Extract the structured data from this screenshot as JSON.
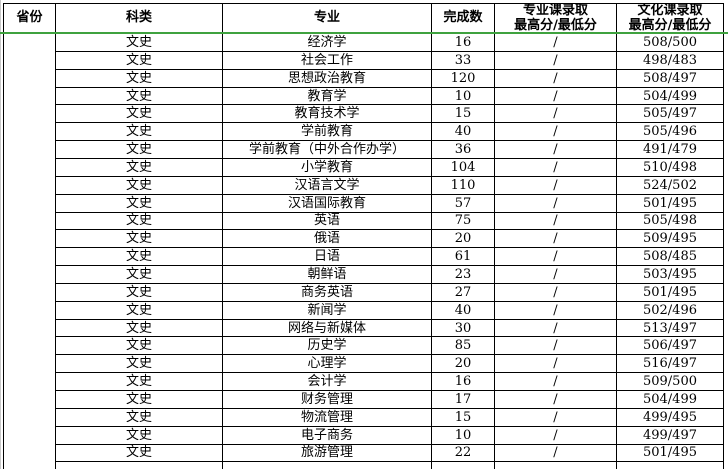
{
  "table": {
    "province": "",
    "headers": [
      "省份",
      "科类",
      "专业",
      "完成数",
      "专业课录取\n最高分/最低分",
      "文化课录取\n最高分/最低分"
    ],
    "rows": [
      [
        "文史",
        "经济学",
        "16",
        "/",
        "508/500"
      ],
      [
        "文史",
        "社会工作",
        "33",
        "/",
        "498/483"
      ],
      [
        "文史",
        "思想政治教育",
        "120",
        "/",
        "508/497"
      ],
      [
        "文史",
        "教育学",
        "10",
        "/",
        "504/499"
      ],
      [
        "文史",
        "教育技术学",
        "15",
        "/",
        "505/497"
      ],
      [
        "文史",
        "学前教育",
        "40",
        "/",
        "505/496"
      ],
      [
        "文史",
        "学前教育（中外合作办学）",
        "36",
        "/",
        "491/479"
      ],
      [
        "文史",
        "小学教育",
        "104",
        "/",
        "510/498"
      ],
      [
        "文史",
        "汉语言文学",
        "110",
        "/",
        "524/502"
      ],
      [
        "文史",
        "汉语国际教育",
        "57",
        "/",
        "501/495"
      ],
      [
        "文史",
        "英语",
        "75",
        "/",
        "505/498"
      ],
      [
        "文史",
        "俄语",
        "20",
        "/",
        "509/495"
      ],
      [
        "文史",
        "日语",
        "61",
        "/",
        "508/485"
      ],
      [
        "文史",
        "朝鲜语",
        "23",
        "/",
        "503/495"
      ],
      [
        "文史",
        "商务英语",
        "27",
        "/",
        "501/495"
      ],
      [
        "文史",
        "新闻学",
        "40",
        "/",
        "502/496"
      ],
      [
        "文史",
        "网络与新媒体",
        "30",
        "/",
        "513/497"
      ],
      [
        "文史",
        "历史学",
        "85",
        "/",
        "506/497"
      ],
      [
        "文史",
        "心理学",
        "20",
        "/",
        "516/497"
      ],
      [
        "文史",
        "会计学",
        "16",
        "/",
        "509/500"
      ],
      [
        "文史",
        "财务管理",
        "17",
        "/",
        "504/499"
      ],
      [
        "文史",
        "物流管理",
        "15",
        "/",
        "499/495"
      ],
      [
        "文史",
        "电子商务",
        "10",
        "/",
        "499/497"
      ],
      [
        "文史",
        "旅游管理",
        "22",
        "/",
        "501/495"
      ]
    ]
  },
  "colors": {
    "grid_border": "#000000",
    "frozen_line_green": "#3fa23f",
    "left_gridline_gray": "#c9c9c9"
  }
}
